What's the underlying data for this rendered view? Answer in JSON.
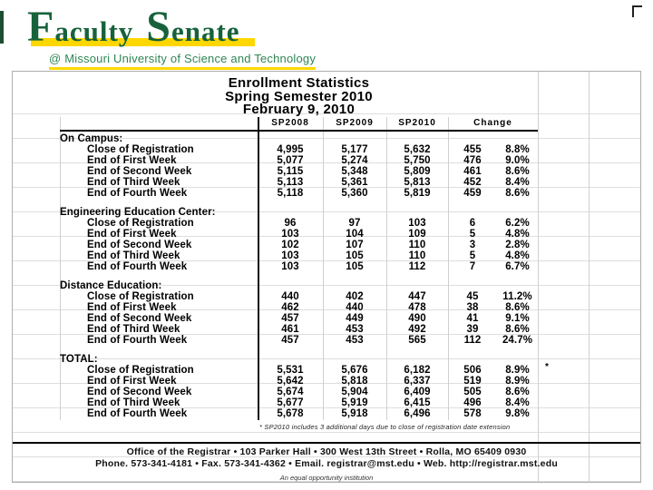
{
  "logo": {
    "word1_initial": "F",
    "word1_rest": "aculty",
    "word2_initial": "S",
    "word2_rest": "enate",
    "subtitle": "@ Missouri University of Science and Technology",
    "green": "#17623B",
    "subtitle_green": "#2F8654",
    "yellow": "#FFD700"
  },
  "report": {
    "title_line1": "Enrollment Statistics",
    "title_line2": "Spring Semester 2010",
    "title_line3": "February 9, 2010",
    "columns": [
      "SP2008",
      "SP2009",
      "SP2010",
      "Change"
    ],
    "sections": [
      {
        "name": "On Campus:",
        "rows": [
          {
            "label": "Close of Registration",
            "sp2008": "4,995",
            "sp2009": "5,177",
            "sp2010": "5,632",
            "change": "455",
            "pct": "8.8%"
          },
          {
            "label": "End of First Week",
            "sp2008": "5,077",
            "sp2009": "5,274",
            "sp2010": "5,750",
            "change": "476",
            "pct": "9.0%"
          },
          {
            "label": "End of Second Week",
            "sp2008": "5,115",
            "sp2009": "5,348",
            "sp2010": "5,809",
            "change": "461",
            "pct": "8.6%"
          },
          {
            "label": "End of Third Week",
            "sp2008": "5,113",
            "sp2009": "5,361",
            "sp2010": "5,813",
            "change": "452",
            "pct": "8.4%"
          },
          {
            "label": "End of Fourth Week",
            "sp2008": "5,118",
            "sp2009": "5,360",
            "sp2010": "5,819",
            "change": "459",
            "pct": "8.6%"
          }
        ]
      },
      {
        "name": "Engineering Education Center:",
        "rows": [
          {
            "label": "Close of Registration",
            "sp2008": "96",
            "sp2009": "97",
            "sp2010": "103",
            "change": "6",
            "pct": "6.2%"
          },
          {
            "label": "End of First Week",
            "sp2008": "103",
            "sp2009": "104",
            "sp2010": "109",
            "change": "5",
            "pct": "4.8%"
          },
          {
            "label": "End of Second Week",
            "sp2008": "102",
            "sp2009": "107",
            "sp2010": "110",
            "change": "3",
            "pct": "2.8%"
          },
          {
            "label": "End of Third Week",
            "sp2008": "103",
            "sp2009": "105",
            "sp2010": "110",
            "change": "5",
            "pct": "4.8%"
          },
          {
            "label": "End of Fourth Week",
            "sp2008": "103",
            "sp2009": "105",
            "sp2010": "112",
            "change": "7",
            "pct": "6.7%"
          }
        ]
      },
      {
        "name": "Distance Education:",
        "rows": [
          {
            "label": "Close of Registration",
            "sp2008": "440",
            "sp2009": "402",
            "sp2010": "447",
            "change": "45",
            "pct": "11.2%"
          },
          {
            "label": "End of First Week",
            "sp2008": "462",
            "sp2009": "440",
            "sp2010": "478",
            "change": "38",
            "pct": "8.6%"
          },
          {
            "label": "End of Second Week",
            "sp2008": "457",
            "sp2009": "449",
            "sp2010": "490",
            "change": "41",
            "pct": "9.1%"
          },
          {
            "label": "End of Third Week",
            "sp2008": "461",
            "sp2009": "453",
            "sp2010": "492",
            "change": "39",
            "pct": "8.6%"
          },
          {
            "label": "End of Fourth Week",
            "sp2008": "457",
            "sp2009": "453",
            "sp2010": "565",
            "change": "112",
            "pct": "24.7%"
          }
        ]
      },
      {
        "name": "TOTAL:",
        "rows": [
          {
            "label": "Close of Registration",
            "sp2008": "5,531",
            "sp2009": "5,676",
            "sp2010": "6,182",
            "change": "506",
            "pct": "8.9%",
            "note": "*"
          },
          {
            "label": "End of First Week",
            "sp2008": "5,642",
            "sp2009": "5,818",
            "sp2010": "6,337",
            "change": "519",
            "pct": "8.9%"
          },
          {
            "label": "End of Second Week",
            "sp2008": "5,674",
            "sp2009": "5,904",
            "sp2010": "6,409",
            "change": "505",
            "pct": "8.6%"
          },
          {
            "label": "End of Third Week",
            "sp2008": "5,677",
            "sp2009": "5,919",
            "sp2010": "6,415",
            "change": "496",
            "pct": "8.4%"
          },
          {
            "label": "End of Fourth Week",
            "sp2008": "5,678",
            "sp2009": "5,918",
            "sp2010": "6,496",
            "change": "578",
            "pct": "9.8%"
          }
        ]
      }
    ],
    "footnote": "* SP2010 includes 3 additional days due to close of registration date extension"
  },
  "footer": {
    "line1": "Office of the Registrar  •  103 Parker Hall  •  300 West 13th Street  •  Rolla, MO 65409 0930",
    "line2": "Phone. 573-341-4181  •  Fax. 573-341-4362  •  Email. registrar@mst.edu  •  Web. http://registrar.mst.edu",
    "equal_opportunity": "An equal opportunity institution"
  }
}
